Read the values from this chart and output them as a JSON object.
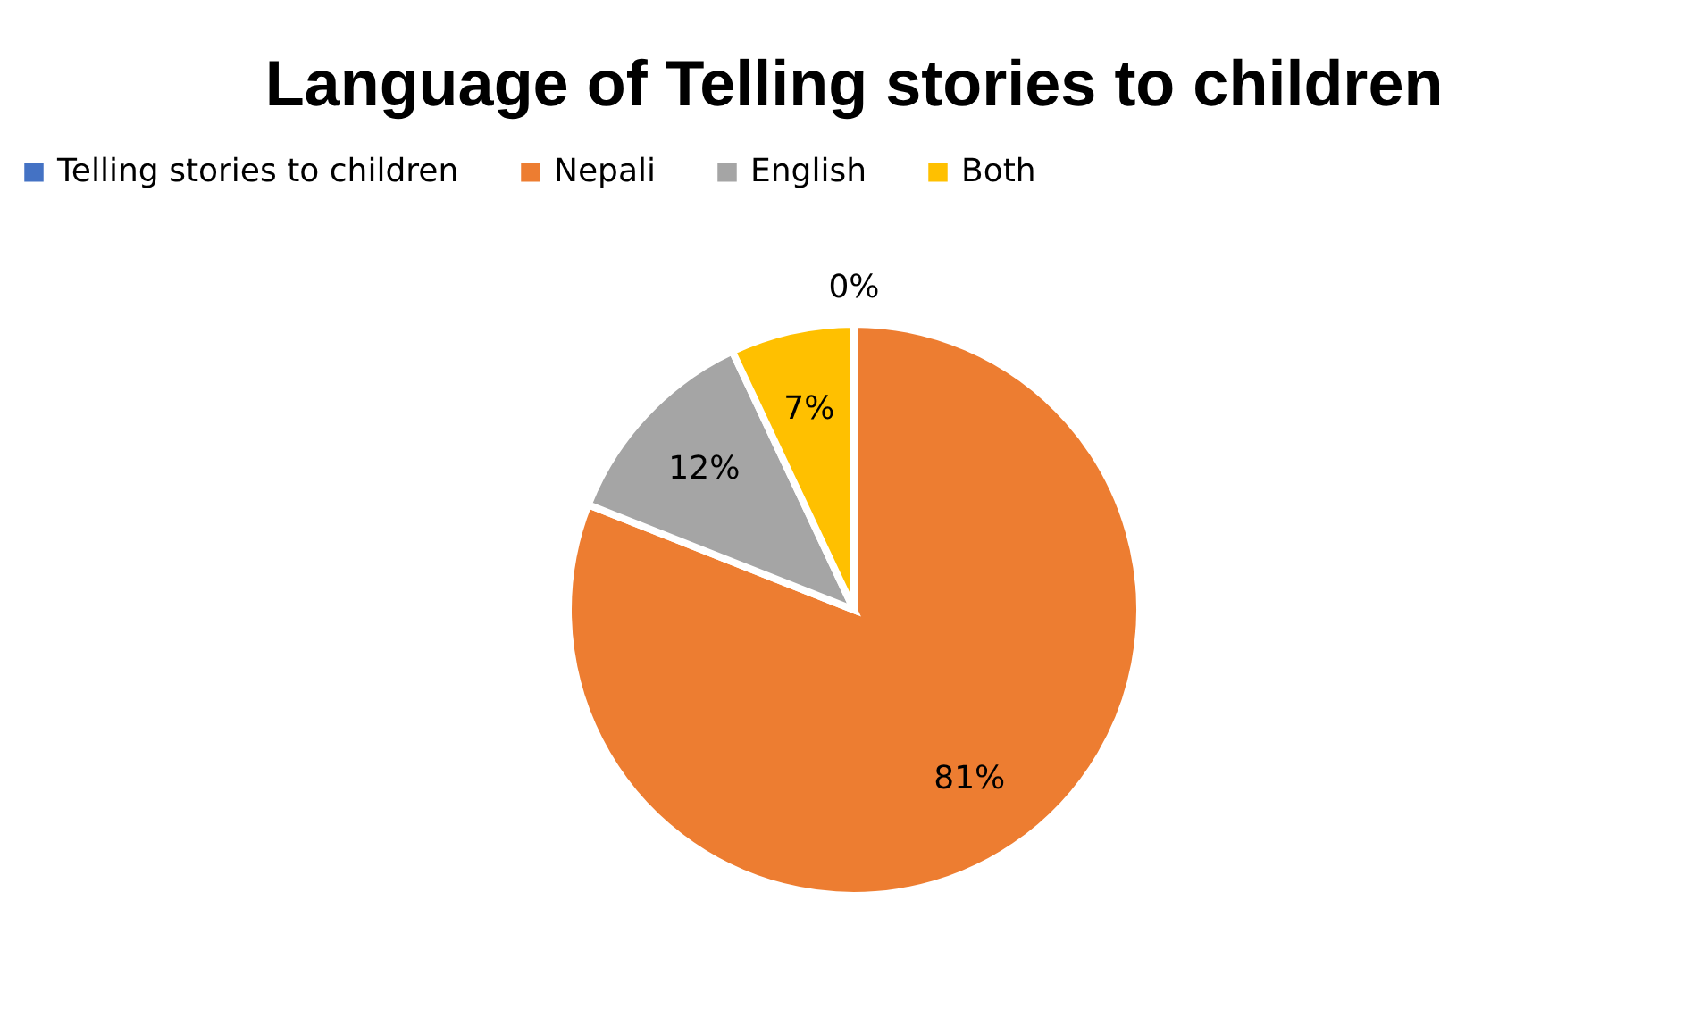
{
  "chart_data": {
    "type": "pie",
    "title": "Language of Telling stories to children",
    "categories": [
      "Telling stories to children",
      "Nepali",
      "English",
      "Both"
    ],
    "values": [
      0,
      81,
      12,
      7
    ],
    "colors": [
      "#4472c4",
      "#ed7d31",
      "#a5a5a5",
      "#ffc000"
    ],
    "value_labels": [
      "0%",
      "81%",
      "12%",
      "7%"
    ],
    "legend": "top"
  }
}
